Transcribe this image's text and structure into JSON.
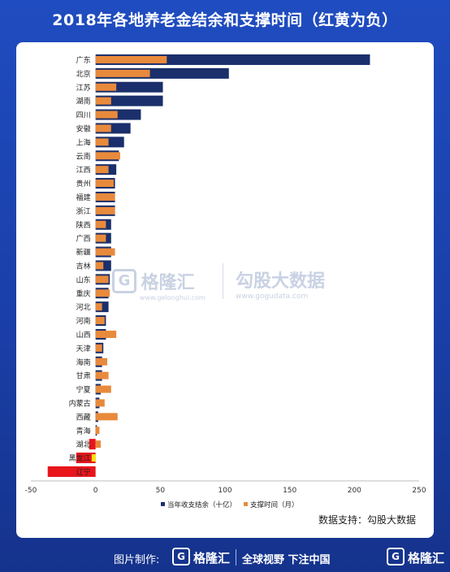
{
  "title": "2018年各地养老金结余和支撑时间（红黄为负）",
  "source": "数据支持：勾股大数据",
  "footer": {
    "made_by": "图片制作:",
    "logo_mark": "G",
    "logo_name": "格隆汇",
    "slogan": "全球视野 下注中国",
    "corner_logo": "格隆汇"
  },
  "watermark": {
    "mark": "G",
    "left_brand": "格隆汇",
    "left_url": "www.gelonghui.com",
    "right_brand": "勾股大数据",
    "right_url": "www.gogudata.com"
  },
  "chart_data": {
    "type": "bar",
    "orientation": "horizontal",
    "categories": [
      "广东",
      "北京",
      "江苏",
      "湖南",
      "四川",
      "安徽",
      "上海",
      "云南",
      "江西",
      "贵州",
      "福建",
      "浙江",
      "陕西",
      "广西",
      "新疆",
      "吉林",
      "山东",
      "重庆",
      "河北",
      "河南",
      "山西",
      "天津",
      "海南",
      "甘肃",
      "宁夏",
      "内蒙古",
      "西藏",
      "青海",
      "湖北",
      "黑龙江",
      "辽宁"
    ],
    "series": [
      {
        "name": "当年收支结余（十亿）",
        "color": "#1a2f6b",
        "values": [
          212,
          103,
          52,
          52,
          35,
          27,
          22,
          18,
          16,
          15,
          15,
          15,
          12,
          12,
          12,
          12,
          11,
          10,
          10,
          8,
          8,
          6,
          5,
          5,
          4,
          3,
          2,
          1,
          -5,
          -15,
          -37
        ]
      },
      {
        "name": "支撑时间（月）",
        "color": "#e88a3c",
        "values": [
          55,
          42,
          16,
          12,
          17,
          12,
          10,
          19,
          10,
          14,
          15,
          15,
          8,
          8,
          15,
          6,
          10,
          11,
          5,
          7,
          16,
          5,
          9,
          10,
          12,
          7,
          17,
          3,
          4,
          -3,
          0
        ]
      }
    ],
    "negative_colors": {
      "balance": "#e8151b",
      "months": "#ffe500"
    },
    "x_ticks": [
      "-50",
      "0",
      "50",
      "100",
      "150",
      "200",
      "250"
    ],
    "xlim": [
      -50,
      250
    ],
    "grid": false,
    "legend_position": "bottom-right"
  }
}
